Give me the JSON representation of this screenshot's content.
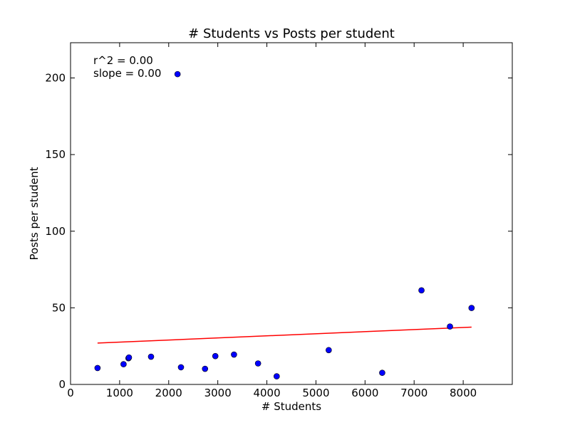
{
  "chart_data": {
    "type": "scatter",
    "title": "# Students vs Posts per student",
    "xlabel": "# Students",
    "ylabel": "Posts per student",
    "xlim": [
      0,
      9000
    ],
    "ylim": [
      0,
      223
    ],
    "xticks": [
      0,
      1000,
      2000,
      3000,
      4000,
      5000,
      6000,
      7000,
      8000
    ],
    "xtick_labels": [
      "0",
      "1000",
      "2000",
      "3000",
      "4000",
      "5000",
      "6000",
      "7000",
      "8000"
    ],
    "yticks": [
      0,
      50,
      100,
      150,
      200
    ],
    "ytick_labels": [
      "0",
      "50",
      "100",
      "150",
      "200"
    ],
    "grid": false,
    "annotations": [
      "r^2 = 0.00",
      "slope = 0.00"
    ],
    "series": [
      {
        "kind": "points",
        "color": "#0000ff",
        "edge_color": "#000000",
        "points": [
          {
            "x": 550,
            "y": 10.7
          },
          {
            "x": 1080,
            "y": 13.2
          },
          {
            "x": 1180,
            "y": 17.1
          },
          {
            "x": 1190,
            "y": 17.6
          },
          {
            "x": 1640,
            "y": 18.1
          },
          {
            "x": 2180,
            "y": 202.5
          },
          {
            "x": 2250,
            "y": 11.2
          },
          {
            "x": 2740,
            "y": 10.2
          },
          {
            "x": 2950,
            "y": 18.5
          },
          {
            "x": 3330,
            "y": 19.5
          },
          {
            "x": 3820,
            "y": 13.7
          },
          {
            "x": 4200,
            "y": 5.3
          },
          {
            "x": 5260,
            "y": 22.4
          },
          {
            "x": 6350,
            "y": 7.6
          },
          {
            "x": 7150,
            "y": 61.4
          },
          {
            "x": 7730,
            "y": 37.8
          },
          {
            "x": 8170,
            "y": 49.9
          }
        ]
      },
      {
        "kind": "fit-line",
        "color": "#ff0000",
        "points": [
          {
            "x": 550,
            "y": 27.0
          },
          {
            "x": 8170,
            "y": 37.4
          }
        ]
      }
    ]
  }
}
